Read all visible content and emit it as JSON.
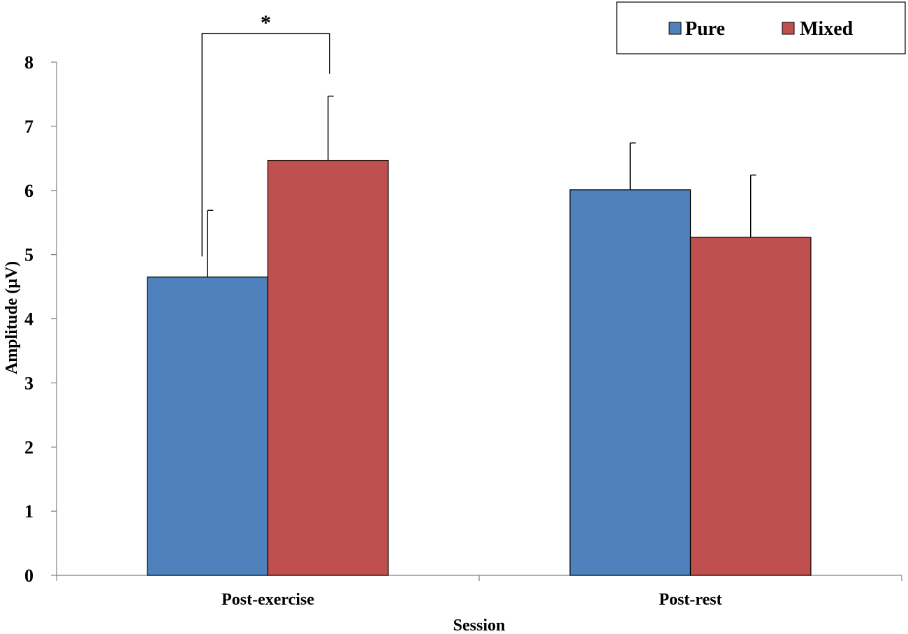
{
  "chart_data": {
    "type": "bar",
    "title": "",
    "xlabel": "Session",
    "ylabel": "Amplitude (μV)",
    "ylim": [
      0,
      8
    ],
    "yticks": [
      0,
      1,
      2,
      3,
      4,
      5,
      6,
      7,
      8
    ],
    "categories": [
      "Post-exercise",
      "Post-rest"
    ],
    "series": [
      {
        "name": "Pure",
        "color": "#4F81BD",
        "values": [
          4.65,
          6.01
        ],
        "errors": [
          1.04,
          0.73
        ]
      },
      {
        "name": "Mixed",
        "color": "#C0504D",
        "values": [
          6.47,
          5.27
        ],
        "errors": [
          1.0,
          0.97
        ]
      }
    ],
    "legend": {
      "position": "top-right",
      "entries": [
        "Pure",
        "Mixed"
      ]
    },
    "annotations": [
      {
        "type": "significance",
        "label": "*",
        "category": "Post-exercise",
        "between": [
          "Pure",
          "Mixed"
        ]
      }
    ]
  }
}
